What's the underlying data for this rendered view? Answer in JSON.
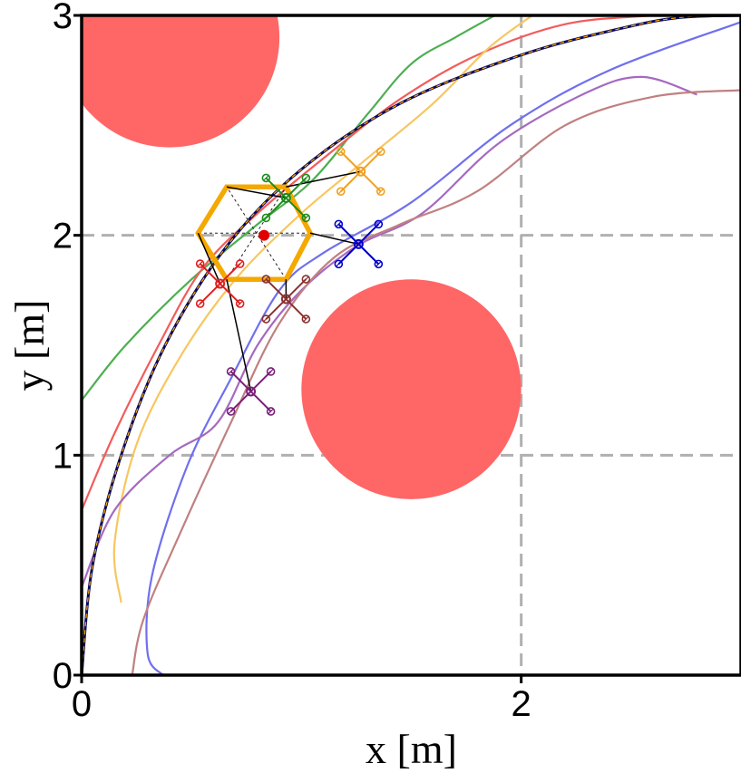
{
  "chart_data": {
    "type": "line",
    "title": "",
    "xlabel": "x [m]",
    "ylabel": "y [m]",
    "xlim": [
      0,
      3
    ],
    "ylim": [
      0,
      3
    ],
    "xticks": [
      0,
      2
    ],
    "xtick_labels": [
      "0",
      "2"
    ],
    "yticks": [
      0,
      1,
      2,
      3
    ],
    "ytick_labels": [
      "0",
      "1",
      "2",
      "3"
    ],
    "grid_x": [
      2
    ],
    "grid_y": [
      1,
      2
    ],
    "grid_color": "#b0b0b0",
    "obstacles": [
      {
        "name": "obstacle-top-left",
        "cx": 0.4,
        "cy": 2.9,
        "r": 0.5,
        "color": "#ff6666"
      },
      {
        "name": "obstacle-center",
        "cx": 1.5,
        "cy": 1.3,
        "r": 0.5,
        "color": "#ff6666"
      }
    ],
    "reference": {
      "name": "reference-path",
      "points": [
        [
          0,
          0
        ],
        [
          0.05,
          0.5
        ],
        [
          0.18,
          1.0
        ],
        [
          0.38,
          1.5
        ],
        [
          0.66,
          1.95
        ],
        [
          1.0,
          2.3
        ],
        [
          1.45,
          2.6
        ],
        [
          2.0,
          2.82
        ],
        [
          2.45,
          2.94
        ],
        [
          2.72,
          2.99
        ],
        [
          3.0,
          3.0
        ]
      ],
      "color": "#0a0a5a",
      "overlay_color": "#ffaa00"
    },
    "series": [
      {
        "name": "green",
        "color": "#4caf50",
        "points": [
          [
            0.0,
            1.25
          ],
          [
            0.2,
            1.5
          ],
          [
            0.5,
            1.8
          ],
          [
            0.8,
            2.05
          ],
          [
            1.05,
            2.25
          ],
          [
            1.3,
            2.55
          ],
          [
            1.5,
            2.78
          ],
          [
            1.7,
            2.9
          ],
          [
            1.88,
            3.0
          ]
        ]
      },
      {
        "name": "red",
        "color": "#f25c5c",
        "points": [
          [
            0.0,
            0.75
          ],
          [
            0.15,
            1.1
          ],
          [
            0.35,
            1.5
          ],
          [
            0.55,
            1.85
          ],
          [
            0.8,
            2.1
          ],
          [
            1.1,
            2.35
          ],
          [
            1.45,
            2.62
          ],
          [
            1.8,
            2.82
          ],
          [
            2.2,
            2.96
          ],
          [
            2.6,
            3.0
          ]
        ]
      },
      {
        "name": "orange",
        "color": "#f8c660",
        "points": [
          [
            0.18,
            0.33
          ],
          [
            0.15,
            0.6
          ],
          [
            0.25,
            1.05
          ],
          [
            0.45,
            1.45
          ],
          [
            0.7,
            1.8
          ],
          [
            1.0,
            2.1
          ],
          [
            1.3,
            2.35
          ],
          [
            1.6,
            2.6
          ],
          [
            1.85,
            2.85
          ],
          [
            2.05,
            3.0
          ]
        ]
      },
      {
        "name": "blue",
        "color": "#6f6fef",
        "points": [
          [
            0.37,
            0.0
          ],
          [
            0.3,
            0.1
          ],
          [
            0.32,
            0.45
          ],
          [
            0.48,
            0.95
          ],
          [
            0.68,
            1.35
          ],
          [
            0.9,
            1.75
          ],
          [
            1.1,
            1.92
          ],
          [
            1.5,
            2.15
          ],
          [
            1.95,
            2.5
          ],
          [
            2.4,
            2.75
          ],
          [
            3.0,
            2.97
          ]
        ]
      },
      {
        "name": "purple",
        "color": "#a56ac0",
        "points": [
          [
            0.0,
            0.4
          ],
          [
            0.15,
            0.75
          ],
          [
            0.4,
            1.0
          ],
          [
            0.62,
            1.15
          ],
          [
            0.8,
            1.5
          ],
          [
            1.0,
            1.75
          ],
          [
            1.25,
            1.95
          ],
          [
            1.55,
            2.1
          ],
          [
            1.9,
            2.42
          ],
          [
            2.3,
            2.65
          ],
          [
            2.55,
            2.72
          ],
          [
            2.8,
            2.64
          ]
        ]
      },
      {
        "name": "brown",
        "color": "#c08080",
        "points": [
          [
            0.23,
            0.0
          ],
          [
            0.28,
            0.25
          ],
          [
            0.45,
            0.65
          ],
          [
            0.68,
            1.15
          ],
          [
            0.9,
            1.6
          ],
          [
            1.15,
            1.9
          ],
          [
            1.45,
            2.05
          ],
          [
            1.8,
            2.2
          ],
          [
            2.2,
            2.5
          ],
          [
            2.6,
            2.63
          ],
          [
            3.0,
            2.66
          ]
        ]
      }
    ],
    "payload": {
      "name": "hexagon-payload",
      "hexagon": [
        [
          0.66,
          1.8
        ],
        [
          0.93,
          1.8
        ],
        [
          1.04,
          2.01
        ],
        [
          0.93,
          2.22
        ],
        [
          0.66,
          2.22
        ],
        [
          0.53,
          2.01
        ]
      ],
      "hex_color": "#f5a800",
      "center": [
        0.83,
        2.0
      ],
      "center_color": "#e00000"
    },
    "drones": [
      {
        "name": "drone-green",
        "color": "#1e8c1e",
        "pos": [
          0.93,
          2.17
        ],
        "attach": [
          0.66,
          2.22
        ]
      },
      {
        "name": "drone-orange",
        "color": "#f0a020",
        "pos": [
          1.27,
          2.29
        ],
        "attach": [
          0.93,
          2.22
        ]
      },
      {
        "name": "drone-blue",
        "color": "#0000cc",
        "pos": [
          1.26,
          1.96
        ],
        "attach": [
          1.04,
          2.01
        ]
      },
      {
        "name": "drone-brown",
        "color": "#8b3030",
        "pos": [
          0.93,
          1.71
        ],
        "attach": [
          0.93,
          1.8
        ]
      },
      {
        "name": "drone-red",
        "color": "#dd1f1f",
        "pos": [
          0.63,
          1.78
        ],
        "attach": [
          0.53,
          2.01
        ]
      },
      {
        "name": "drone-purple",
        "color": "#7a1f7a",
        "pos": [
          0.77,
          1.29
        ],
        "attach": [
          0.66,
          1.8
        ]
      }
    ]
  }
}
